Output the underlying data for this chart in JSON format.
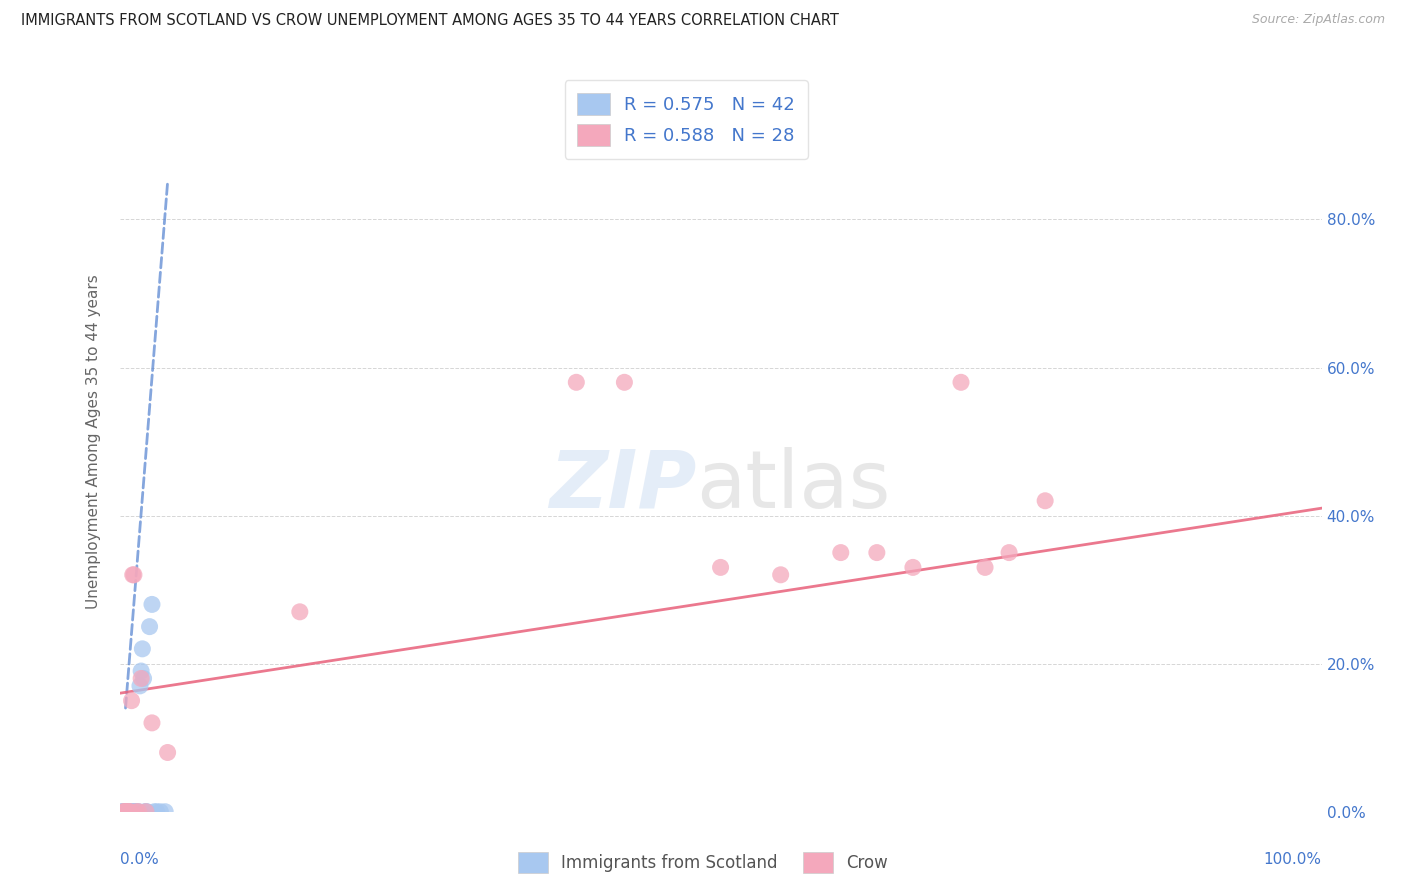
{
  "title": "IMMIGRANTS FROM SCOTLAND VS CROW UNEMPLOYMENT AMONG AGES 35 TO 44 YEARS CORRELATION CHART",
  "source": "Source: ZipAtlas.com",
  "ylabel": "Unemployment Among Ages 35 to 44 years",
  "legend_r1": "R = 0.575",
  "legend_n1": "N = 42",
  "legend_r2": "R = 0.588",
  "legend_n2": "N = 28",
  "legend_label1": "Immigrants from Scotland",
  "legend_label2": "Crow",
  "xlim": [
    0.0,
    1.0
  ],
  "ylim": [
    0.0,
    1.0
  ],
  "yticks": [
    0.0,
    0.2,
    0.4,
    0.6,
    0.8
  ],
  "ytick_labels": [
    "0.0%",
    "20.0%",
    "40.0%",
    "60.0%",
    "80.0%"
  ],
  "xtick_labels_bottom": [
    "0.0%",
    "100.0%"
  ],
  "scotland_color": "#a8c8f0",
  "crow_color": "#f4a8bc",
  "scotland_line_color": "#4477cc",
  "crow_line_color": "#e8607a",
  "title_color": "#333333",
  "axis_color": "#4477cc",
  "background_color": "#ffffff",
  "grid_color": "#cccccc",
  "scotland_x": [
    0.002,
    0.003,
    0.003,
    0.004,
    0.004,
    0.005,
    0.005,
    0.005,
    0.006,
    0.006,
    0.007,
    0.007,
    0.007,
    0.008,
    0.008,
    0.008,
    0.009,
    0.009,
    0.009,
    0.01,
    0.01,
    0.011,
    0.011,
    0.012,
    0.012,
    0.013,
    0.014,
    0.015,
    0.016,
    0.017,
    0.018,
    0.019,
    0.02,
    0.021,
    0.022,
    0.023,
    0.025,
    0.027,
    0.029,
    0.031,
    0.034,
    0.038
  ],
  "scotland_y": [
    0.0,
    0.0,
    0.0,
    0.0,
    0.0,
    0.0,
    0.0,
    0.0,
    0.0,
    0.0,
    0.0,
    0.0,
    0.0,
    0.0,
    0.0,
    0.0,
    0.0,
    0.0,
    0.0,
    0.0,
    0.0,
    0.0,
    0.0,
    0.0,
    0.0,
    0.0,
    0.0,
    0.0,
    0.0,
    0.17,
    0.19,
    0.22,
    0.18,
    0.0,
    0.0,
    0.0,
    0.25,
    0.28,
    0.0,
    0.0,
    0.0,
    0.0
  ],
  "crow_x": [
    0.003,
    0.004,
    0.005,
    0.006,
    0.007,
    0.008,
    0.009,
    0.01,
    0.011,
    0.012,
    0.014,
    0.016,
    0.018,
    0.022,
    0.027,
    0.04,
    0.15,
    0.38,
    0.42,
    0.5,
    0.55,
    0.6,
    0.63,
    0.66,
    0.7,
    0.72,
    0.74,
    0.77
  ],
  "crow_y": [
    0.0,
    0.0,
    0.0,
    0.0,
    0.0,
    0.0,
    0.0,
    0.15,
    0.32,
    0.32,
    0.0,
    0.0,
    0.18,
    0.0,
    0.12,
    0.08,
    0.27,
    0.58,
    0.58,
    0.33,
    0.32,
    0.35,
    0.35,
    0.33,
    0.58,
    0.33,
    0.35,
    0.42
  ],
  "scotland_line_x": [
    0.005,
    0.04
  ],
  "scotland_line_y": [
    0.14,
    0.85
  ],
  "crow_line_x": [
    0.0,
    1.0
  ],
  "crow_line_y": [
    0.16,
    0.41
  ]
}
